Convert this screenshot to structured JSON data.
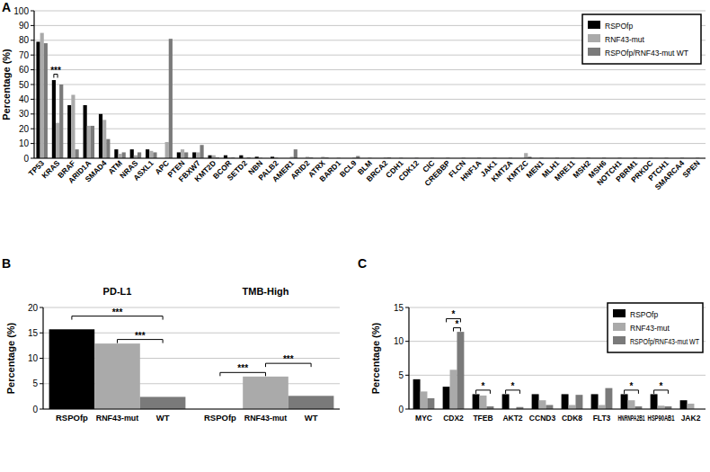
{
  "chart_data": [
    {
      "type": "bar",
      "label": "A",
      "y_label": "Percentage (%)",
      "categories": [
        "TP53",
        "KRAS",
        "BRAF",
        "ARID1A",
        "SMAD4",
        "ATM",
        "NRAS",
        "ASXL1",
        "APC",
        "PTEN",
        "FBXW7",
        "KMT2D",
        "BCOR",
        "SETD2",
        "NBN",
        "PALB2",
        "AMER1",
        "ARID2",
        "ATRX",
        "BARD1",
        "BCL9",
        "BLM",
        "BRCA2",
        "CDH1",
        "CDK12",
        "CIC",
        "CREBBP",
        "FLCN",
        "HNF1A",
        "JAK1",
        "KMT2A",
        "KMT2C",
        "MEN1",
        "MLH1",
        "MRE11",
        "MSH2",
        "MSH6",
        "NOTCH1",
        "PBRM1",
        "PRKDC",
        "PTCH1",
        "SMARCA4",
        "SPEN"
      ],
      "series": [
        {
          "name": "RSPOfp",
          "color": "#000000",
          "values": [
            79,
            53,
            36,
            36,
            30,
            6,
            6,
            6,
            0,
            4,
            4,
            2,
            2,
            2,
            1,
            1,
            0,
            0,
            0,
            0,
            0,
            0,
            0,
            0,
            0,
            0,
            0,
            0,
            0,
            0,
            0,
            0,
            0,
            0,
            0,
            0,
            0,
            0,
            0,
            0,
            0,
            0,
            0
          ]
        },
        {
          "name": "RNF43-mut",
          "color": "#aaaaaa",
          "values": [
            85,
            24,
            43,
            22,
            26,
            3,
            2,
            5,
            11,
            6,
            4,
            2,
            0.5,
            0,
            0.5,
            0.5,
            1,
            1,
            1,
            0.5,
            0.5,
            0.5,
            0.5,
            0.5,
            0.5,
            0.5,
            0.5,
            0.5,
            0.5,
            0.5,
            0.5,
            3.5,
            0.5,
            0.5,
            0.5,
            0.5,
            0.5,
            0.5,
            0.5,
            0.5,
            0.5,
            0.5,
            0.5
          ]
        },
        {
          "name": "RSPOfp/RNF43-mut WT",
          "color": "#7a7a7a",
          "values": [
            78,
            50,
            6,
            22,
            13,
            4,
            4,
            4,
            81,
            4,
            9,
            0.5,
            0.5,
            0.5,
            0,
            0,
            6,
            0.5,
            0.5,
            0,
            1.5,
            0,
            0.5,
            0,
            0,
            0,
            0,
            0,
            0,
            0,
            0,
            1,
            0,
            0,
            0,
            0,
            0,
            0,
            0,
            0,
            0,
            0,
            0
          ]
        }
      ],
      "ylim": [
        0,
        100
      ],
      "yticks": [
        0,
        10,
        20,
        30,
        40,
        50,
        60,
        70,
        80,
        90,
        100
      ],
      "grid": true,
      "legend": "top-right",
      "annotations": [
        {
          "text": "***",
          "category": 1,
          "from": 0,
          "to": 1
        }
      ]
    },
    {
      "type": "bar",
      "label": "B",
      "y_label": "Percentage (%)",
      "groups": [
        "PD-L1",
        "TMB-High"
      ],
      "categories": [
        "RSPOfp",
        "RNF43-mut",
        "WT",
        "RSPOfp",
        "RNF43-mut",
        "WT"
      ],
      "values": [
        15.7,
        12.9,
        2.4,
        0,
        6.4,
        2.6
      ],
      "colors": [
        "#000000",
        "#aaaaaa",
        "#7a7a7a",
        "#000000",
        "#aaaaaa",
        "#7a7a7a"
      ],
      "ylim": [
        0,
        20
      ],
      "yticks": [
        0,
        5,
        10,
        15,
        20
      ],
      "grid": true,
      "annotations": [
        {
          "text": "***",
          "from": 1,
          "to": 2
        },
        {
          "text": "***",
          "from": 0,
          "to": 2
        },
        {
          "text": "***",
          "from": 3,
          "to": 4
        },
        {
          "text": "***",
          "from": 4,
          "to": 5
        }
      ]
    },
    {
      "type": "bar",
      "label": "C",
      "y_label": "Percentage (%)",
      "categories": [
        "MYC",
        "CDX2",
        "TFEB",
        "AKT2",
        "CCND3",
        "CDK8",
        "FLT3",
        "HNRNPA2B1",
        "HSP90AB1",
        "JAK2"
      ],
      "series": [
        {
          "name": "RSPOfp",
          "color": "#000000",
          "values": [
            4.4,
            3.3,
            2.2,
            2.2,
            2.2,
            2.2,
            2.2,
            2.2,
            2.2,
            1.3
          ]
        },
        {
          "name": "RNF43-mut",
          "color": "#aaaaaa",
          "values": [
            2.6,
            5.8,
            2.0,
            0,
            1.3,
            0.6,
            0.6,
            1.3,
            0.5,
            0.8
          ]
        },
        {
          "name": "RSPOfp/RNF43-mut WT",
          "color": "#7a7a7a",
          "values": [
            1.6,
            11.4,
            0.4,
            0.3,
            0.6,
            2.1,
            3.1,
            0.4,
            0.4,
            0
          ]
        }
      ],
      "ylim": [
        0,
        15
      ],
      "yticks": [
        0,
        5,
        10,
        15
      ],
      "grid": true,
      "legend": "top-right",
      "annotations": [
        {
          "text": "*",
          "category": 1,
          "from": 1,
          "to": 2
        },
        {
          "text": "*",
          "category": 1,
          "from": 0,
          "to": 2
        },
        {
          "text": "*",
          "category": 2,
          "from": 0,
          "to": 2
        },
        {
          "text": "*",
          "category": 3,
          "from": 0,
          "to": 2
        },
        {
          "text": "*",
          "category": 7,
          "from": 0,
          "to": 2
        },
        {
          "text": "*",
          "category": 8,
          "from": 0,
          "to": 2
        }
      ]
    }
  ]
}
